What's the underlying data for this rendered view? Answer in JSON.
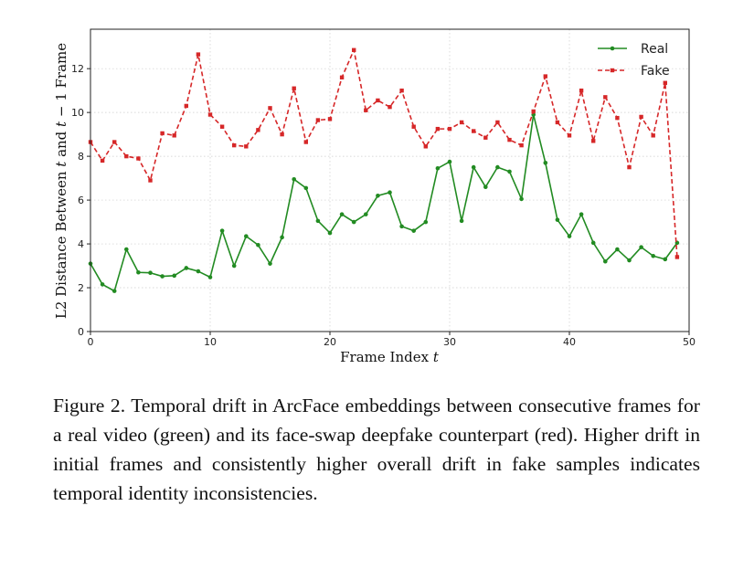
{
  "chart_data": {
    "type": "line",
    "xlabel_text": "Frame Index ",
    "xlabel_var": "t",
    "ylabel_parts": {
      "prefix": "L2 Distance Between ",
      "var1": "t",
      "mid": " and ",
      "var2": "t",
      "suffix": " − 1 Frame"
    },
    "xlim": [
      0,
      50
    ],
    "ylim": [
      0,
      13.8
    ],
    "x_ticks": [
      0,
      10,
      20,
      30,
      40,
      50
    ],
    "x_tick_labels": [
      "0",
      "10",
      "20",
      "30",
      "40",
      "50"
    ],
    "y_ticks": [
      0,
      2,
      4,
      6,
      8,
      10,
      12
    ],
    "y_tick_labels": [
      "0",
      "2",
      "4",
      "6",
      "8",
      "10",
      "12"
    ],
    "grid": true,
    "legend_position": "top-right",
    "x": [
      0,
      1,
      2,
      3,
      4,
      5,
      6,
      7,
      8,
      9,
      10,
      11,
      12,
      13,
      14,
      15,
      16,
      17,
      18,
      19,
      20,
      21,
      22,
      23,
      24,
      25,
      26,
      27,
      28,
      29,
      30,
      31,
      32,
      33,
      34,
      35,
      36,
      37,
      38,
      39,
      40,
      41,
      42,
      43,
      44,
      45,
      46,
      47,
      48,
      49
    ],
    "series": [
      {
        "name": "Real",
        "color": "#228b22",
        "line_style": "solid",
        "marker": "circle",
        "values": [
          3.1,
          2.15,
          1.85,
          3.75,
          2.7,
          2.68,
          2.52,
          2.55,
          2.9,
          2.75,
          2.48,
          4.6,
          3.0,
          4.35,
          3.95,
          3.1,
          4.3,
          6.95,
          6.55,
          5.05,
          4.5,
          5.35,
          5.0,
          5.35,
          6.2,
          6.35,
          4.8,
          4.6,
          5.0,
          7.45,
          7.75,
          5.05,
          7.5,
          6.6,
          7.5,
          7.3,
          6.05,
          9.9,
          7.7,
          5.1,
          4.35,
          5.35,
          4.05,
          3.2,
          3.75,
          3.25,
          3.85,
          3.45,
          3.3,
          4.05
        ]
      },
      {
        "name": "Fake",
        "color": "#d62728",
        "line_style": "dashed",
        "marker": "square",
        "values": [
          8.65,
          7.8,
          8.65,
          8.0,
          7.9,
          6.9,
          9.05,
          8.95,
          10.3,
          12.65,
          9.9,
          9.35,
          8.5,
          8.45,
          9.2,
          10.2,
          9.0,
          11.1,
          8.65,
          9.65,
          9.7,
          11.6,
          12.85,
          10.1,
          10.55,
          10.25,
          11.0,
          9.35,
          8.45,
          9.25,
          9.25,
          9.55,
          9.15,
          8.85,
          9.55,
          8.75,
          8.5,
          10.05,
          11.65,
          9.55,
          8.95,
          11.0,
          8.7,
          10.7,
          9.75,
          7.5,
          9.8,
          8.95,
          11.35,
          3.4
        ]
      }
    ]
  },
  "caption": "Figure 2. Temporal drift in ArcFace embeddings between consecutive frames for a real video (green) and its face-swap deepfake counterpart (red).  Higher drift in initial frames and consistently higher overall drift in fake samples indicates temporal identity inconsistencies."
}
